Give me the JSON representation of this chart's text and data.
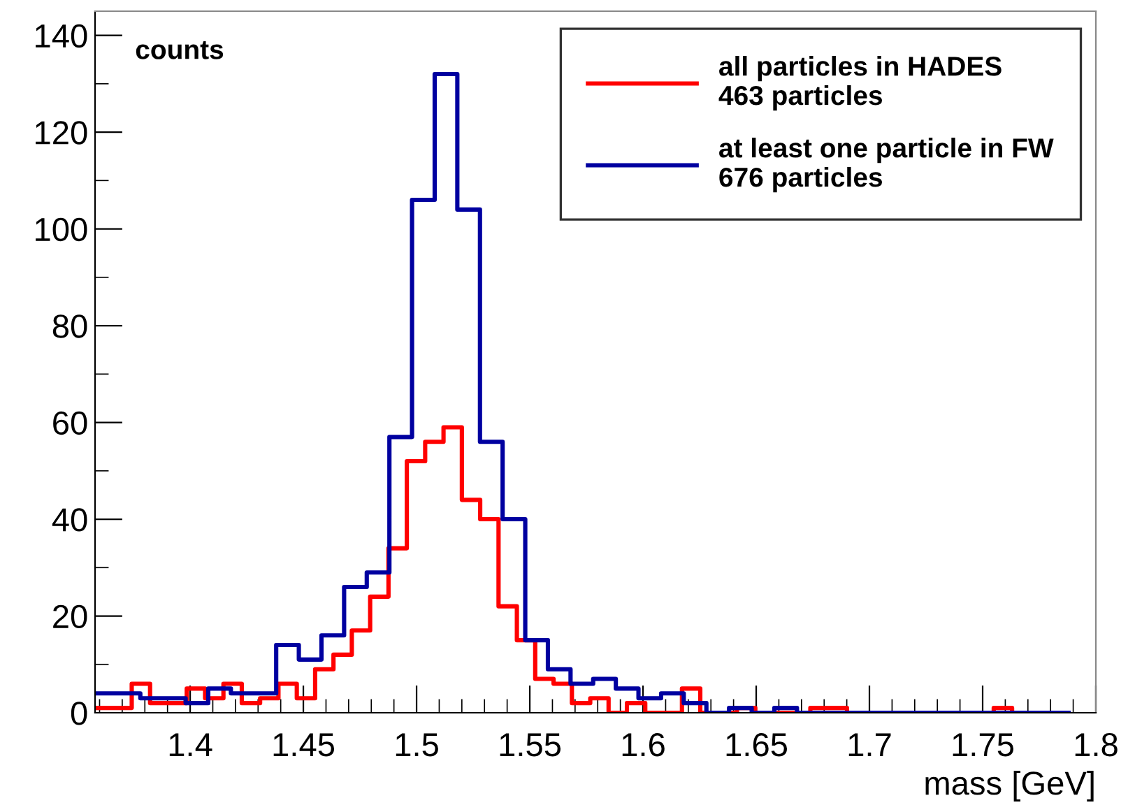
{
  "chart_data": {
    "type": "step",
    "xlabel": "mass [GeV]",
    "ylabel": "counts",
    "xlim": [
      1.358,
      1.8
    ],
    "ylim": [
      0,
      145
    ],
    "xticks": [
      1.4,
      1.45,
      1.5,
      1.55,
      1.6,
      1.65,
      1.7,
      1.75,
      1.8
    ],
    "yticks": [
      0,
      20,
      40,
      60,
      80,
      100,
      120,
      140
    ],
    "grid": false,
    "legend": "top right",
    "series": [
      {
        "name": "all particles in HADES\n463 particles",
        "color": "#ff0000",
        "x": [
          1.358,
          1.3661,
          1.3742,
          1.3823,
          1.3904,
          1.3985,
          1.4066,
          1.4147,
          1.4228,
          1.4309,
          1.439,
          1.4471,
          1.4552,
          1.4633,
          1.4714,
          1.4795,
          1.4876,
          1.4957,
          1.5038,
          1.5119,
          1.52,
          1.5281,
          1.5362,
          1.5443,
          1.5524,
          1.5605,
          1.5686,
          1.5767,
          1.5848,
          1.5929,
          1.601,
          1.6091,
          1.6172,
          1.6253,
          1.6334,
          1.6415,
          1.6496,
          1.6577,
          1.6658,
          1.6739,
          1.682,
          1.6901,
          1.6982,
          1.7063,
          1.7144,
          1.7225,
          1.7306,
          1.7387,
          1.7468,
          1.7549,
          1.763,
          1.7711
        ],
        "values": [
          1,
          1,
          6,
          2,
          2,
          5,
          3,
          6,
          2,
          3,
          6,
          3,
          9,
          12,
          17,
          24,
          34,
          52,
          56,
          59,
          44,
          40,
          22,
          15,
          7,
          6,
          2,
          3,
          0,
          2,
          0,
          0,
          5,
          0,
          0,
          1,
          0,
          0,
          0,
          1,
          1,
          0,
          0,
          0,
          0,
          0,
          0,
          0,
          0,
          1,
          0,
          0
        ]
      },
      {
        "name": "at least one particle in FW\n676 particles",
        "color": "#0000a0",
        "x": [
          1.358,
          1.368,
          1.378,
          1.388,
          1.398,
          1.408,
          1.418,
          1.428,
          1.438,
          1.448,
          1.458,
          1.468,
          1.478,
          1.488,
          1.498,
          1.508,
          1.518,
          1.528,
          1.538,
          1.548,
          1.558,
          1.568,
          1.578,
          1.588,
          1.598,
          1.608,
          1.618,
          1.628,
          1.638,
          1.648,
          1.658,
          1.668,
          1.678,
          1.688,
          1.698,
          1.708,
          1.718,
          1.728,
          1.738,
          1.748,
          1.758,
          1.768,
          1.778,
          1.788
        ],
        "values": [
          4,
          4,
          3,
          3,
          2,
          5,
          4,
          4,
          14,
          11,
          16,
          26,
          29,
          57,
          106,
          132,
          104,
          56,
          40,
          15,
          9,
          6,
          7,
          5,
          3,
          4,
          2,
          0,
          1,
          0,
          1,
          0,
          0,
          0,
          0,
          0,
          0,
          0,
          0,
          0,
          0,
          0,
          0,
          0
        ]
      }
    ]
  }
}
